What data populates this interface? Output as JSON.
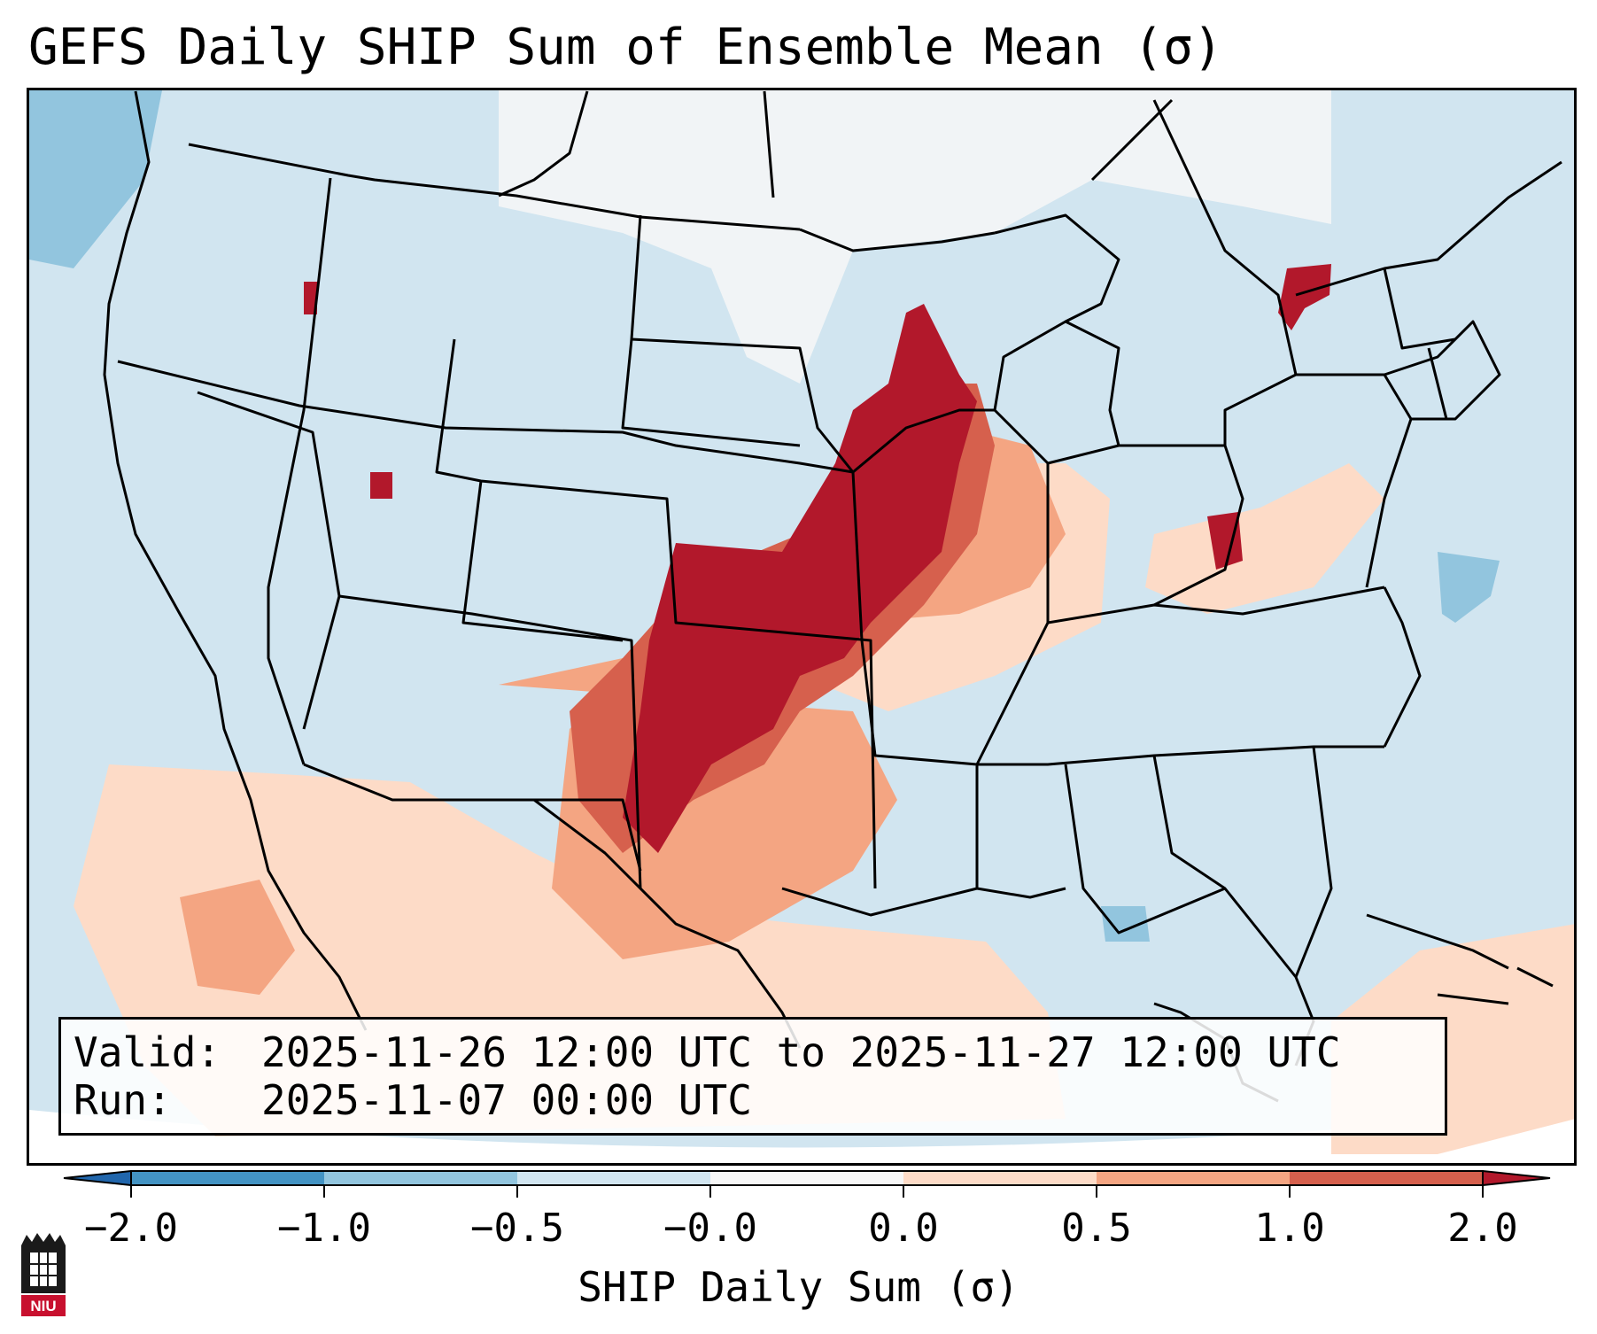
{
  "title": "GEFS Daily SHIP Sum of Ensemble Mean (σ)",
  "info": {
    "valid_key": "Valid:",
    "valid_value": "2025-11-26 12:00 UTC to 2025-11-27 12:00 UTC",
    "run_key": "Run:",
    "run_value": "2025-11-07 00:00 UTC"
  },
  "colorbar": {
    "label": "SHIP Daily Sum (σ)",
    "ticks": [
      "−2.0",
      "−1.0",
      "−0.5",
      "−0.0",
      "0.0",
      "0.5",
      "1.0",
      "2.0"
    ],
    "colors": [
      "#4393c3",
      "#92c5de",
      "#d1e5f0",
      "#f7f7f7",
      "#fddbc7",
      "#f4a582",
      "#d6604d"
    ],
    "extend_low_color": "#2166ac",
    "extend_high_color": "#b2182b"
  },
  "map": {
    "projection": "Lambert conformal over the contiguous United States",
    "background_color": "#d1e5f0",
    "strong_color": "#b2182b"
  },
  "logo": {
    "text": "NIU"
  }
}
